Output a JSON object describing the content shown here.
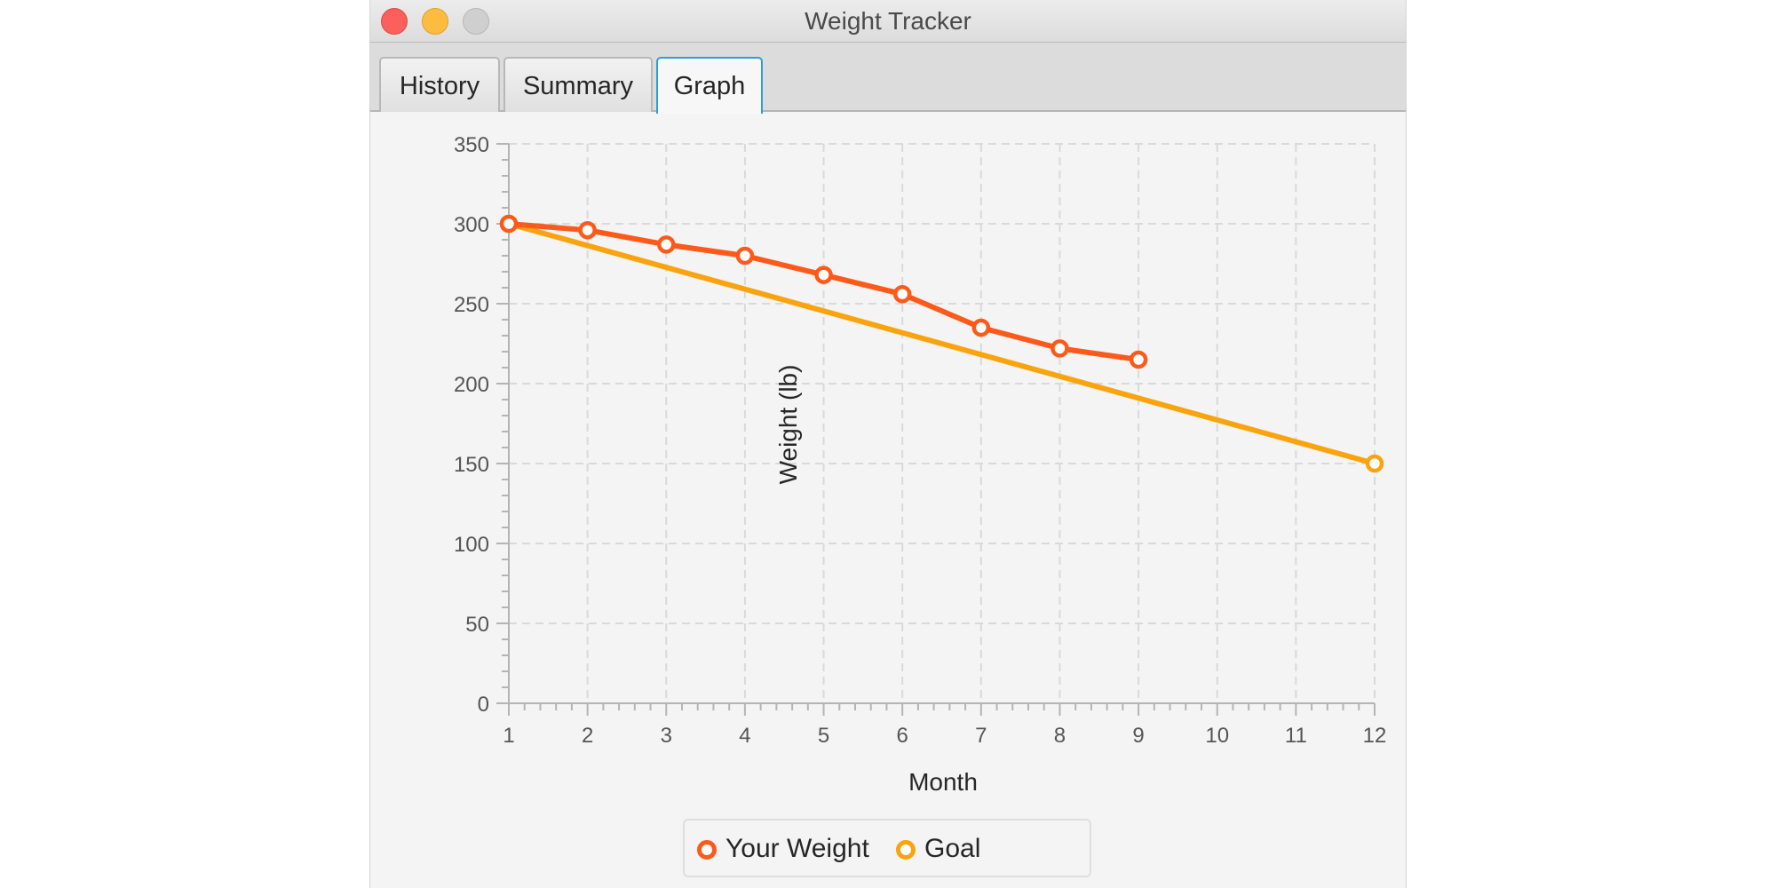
{
  "window": {
    "title": "Weight Tracker"
  },
  "tabs": [
    {
      "label": "History"
    },
    {
      "label": "Summary"
    },
    {
      "label": "Graph"
    }
  ],
  "colors": {
    "your_weight": "#fc5a1a",
    "goal": "#f9a40e",
    "grid": "#d9d9d9",
    "axis": "#b4b4b4"
  },
  "chart_data": {
    "type": "line",
    "xlabel": "Month",
    "ylabel": "Weight (lb)",
    "xlim": [
      1,
      12
    ],
    "ylim": [
      0,
      350
    ],
    "xticks": [
      1,
      2,
      3,
      4,
      5,
      6,
      7,
      8,
      9,
      10,
      11,
      12
    ],
    "yticks": [
      0,
      50,
      100,
      150,
      200,
      250,
      300,
      350
    ],
    "grid": true,
    "legend_position": "bottom",
    "series": [
      {
        "name": "Your Weight",
        "x": [
          1,
          2,
          3,
          4,
          5,
          6,
          7,
          8,
          9
        ],
        "y": [
          300,
          296,
          287,
          280,
          268,
          256,
          235,
          222,
          215
        ]
      },
      {
        "name": "Goal",
        "x": [
          1,
          12
        ],
        "y": [
          300,
          150
        ]
      }
    ]
  }
}
